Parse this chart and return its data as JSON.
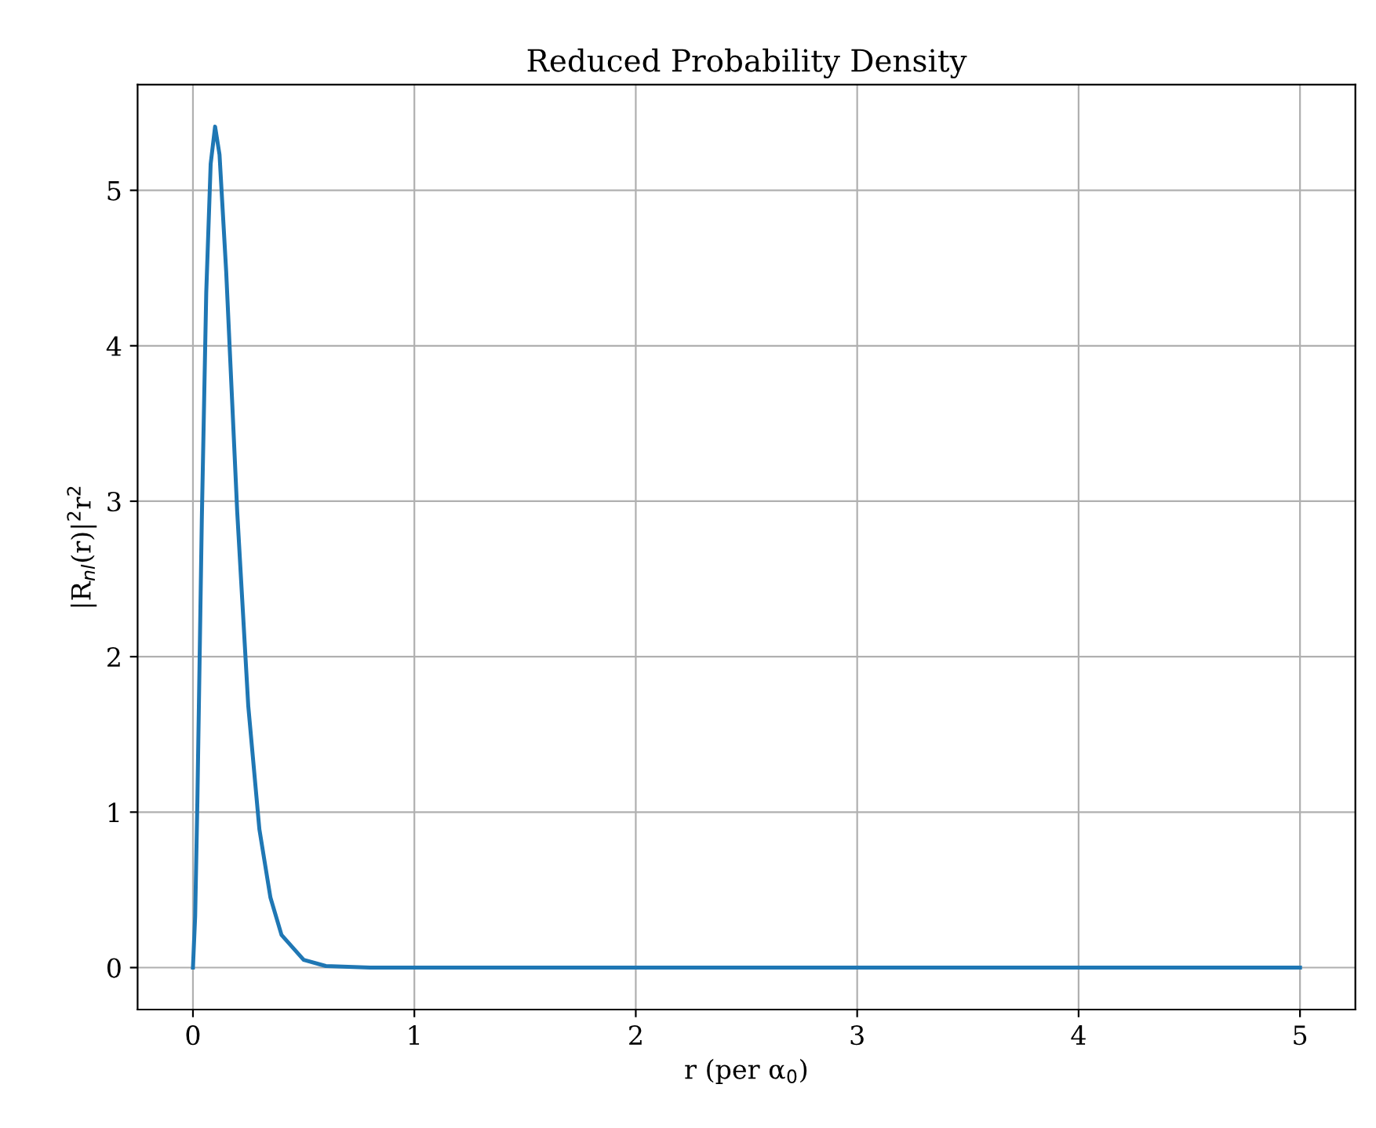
{
  "chart_data": {
    "type": "line",
    "title": "Reduced Probability Density",
    "xlabel": "r (per α$_{0}$)",
    "ylabel": "|R$_{nl}$(r)|$^{2}$r$^{2}$",
    "x": [
      0,
      0.01,
      0.02,
      0.04,
      0.06,
      0.08,
      0.1,
      0.12,
      0.15,
      0.2,
      0.25,
      0.3,
      0.35,
      0.4,
      0.5,
      0.6,
      0.8,
      1,
      1.5,
      2,
      2.5,
      3,
      3.5,
      4,
      4.5,
      5
    ],
    "series": [
      {
        "color": "#1f77b4",
        "values": [
          0,
          0.33,
          1.07,
          2.88,
          4.34,
          5.17,
          5.41,
          5.23,
          4.48,
          2.93,
          1.68,
          0.89,
          0.45,
          0.21,
          0.05,
          0.01,
          0,
          0,
          0,
          0,
          0,
          0,
          0,
          0,
          0,
          0
        ]
      }
    ],
    "xlim": [
      -0.25,
      5.25
    ],
    "ylim": [
      -0.27,
      5.68
    ],
    "xticks": [
      0,
      1,
      2,
      3,
      4,
      5
    ],
    "yticks": [
      0,
      1,
      2,
      3,
      4,
      5
    ],
    "grid": true,
    "marker": "none",
    "line_style": "solid"
  }
}
